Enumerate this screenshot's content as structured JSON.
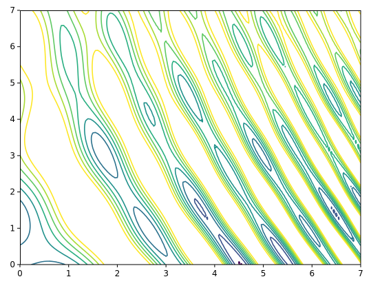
{
  "chart_data": {
    "type": "contour",
    "title": "",
    "xlabel": "",
    "ylabel": "",
    "xlim": [
      0,
      7
    ],
    "ylim": [
      0,
      7
    ],
    "x_ticks": [
      "0",
      "1",
      "2",
      "3",
      "4",
      "5",
      "6",
      "7"
    ],
    "y_ticks": [
      "0",
      "1",
      "2",
      "3",
      "4",
      "5",
      "6",
      "7"
    ],
    "colormap": "viridis",
    "grid": false,
    "legend": "none",
    "levels": [
      -0.9,
      -0.75,
      -0.6,
      -0.45,
      -0.3,
      -0.15,
      0.0,
      0.15
    ],
    "level_colors": [
      "#440154",
      "#3b528b",
      "#2c728e",
      "#21918c",
      "#28ae80",
      "#5ec962",
      "#a8db34",
      "#fde725"
    ]
  }
}
